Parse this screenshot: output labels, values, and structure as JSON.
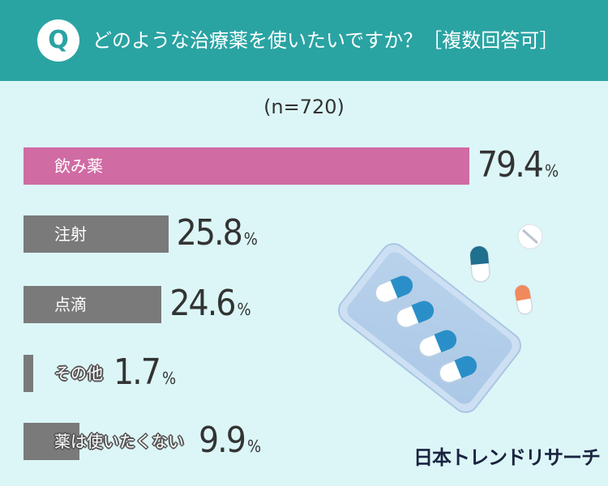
{
  "question": {
    "badge": "Q",
    "text": "どのような治療薬を使いたいですか？［複数回答可］"
  },
  "sample_size": "(n=720)",
  "colors": {
    "header": "#2aa3a3",
    "background": "#dcf6f7",
    "highlight_bar": "#d06ba4",
    "default_bar": "#7a7a7a"
  },
  "chart_data": {
    "type": "bar",
    "orientation": "horizontal",
    "categories": [
      "飲み薬",
      "注射",
      "点滴",
      "その他",
      "薬は使いたくない"
    ],
    "values": [
      79.4,
      25.8,
      24.6,
      1.7,
      9.9
    ],
    "value_labels": [
      "79.4",
      "25.8",
      "24.6",
      "1.7",
      "9.9"
    ],
    "unit": "%",
    "xlim": [
      0,
      100
    ]
  },
  "illustration": "pill-blister-pack",
  "logo": "日本トレンドリサーチ"
}
